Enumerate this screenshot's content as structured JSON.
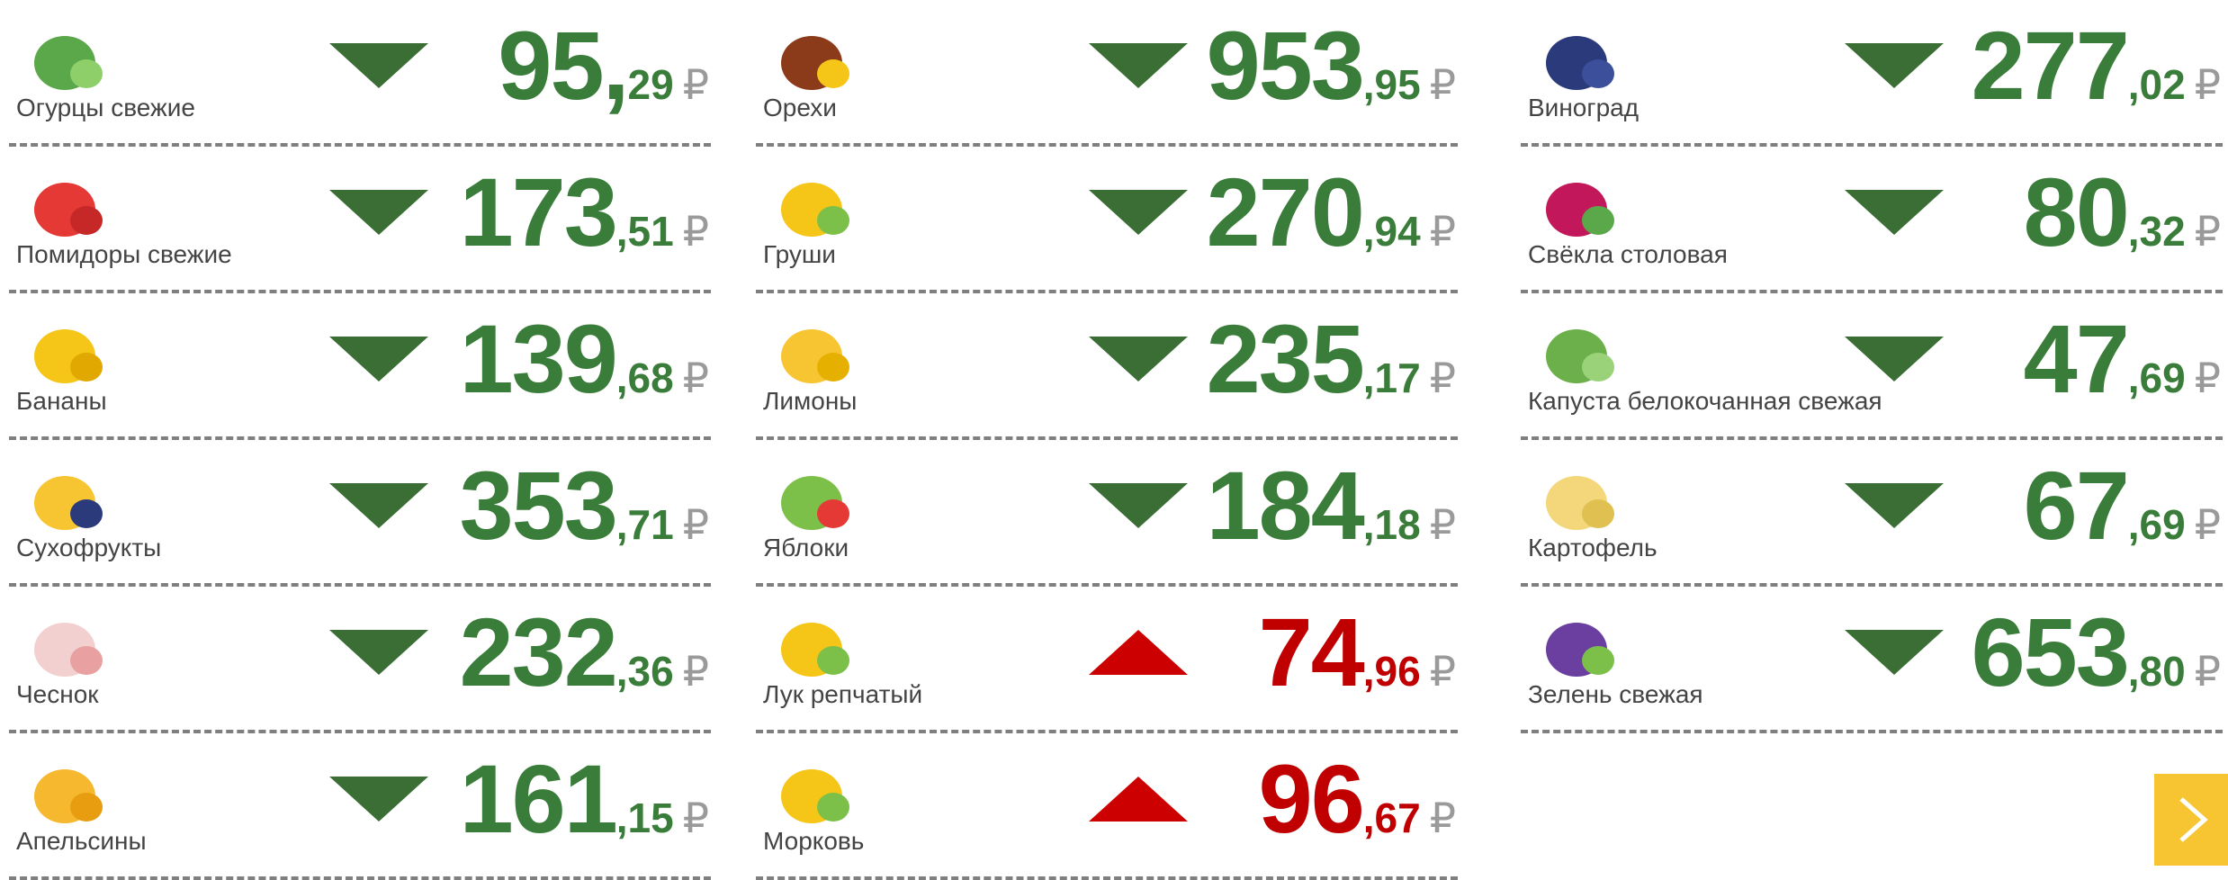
{
  "columns": [
    [
      {
        "name": "Огурцы свежие",
        "whole": "95,",
        "fraction": "29",
        "currency": "₽",
        "direction": "down"
      },
      {
        "name": "Помидоры свежие",
        "whole": "173",
        "fraction": ",51",
        "currency": "₽",
        "direction": "down"
      },
      {
        "name": "Бананы",
        "whole": "139",
        "fraction": ",68",
        "currency": "₽",
        "direction": "down"
      },
      {
        "name": "Сухофрукты",
        "whole": "353",
        "fraction": ",71",
        "currency": "₽",
        "direction": "down"
      },
      {
        "name": "Чеснок",
        "whole": "232",
        "fraction": ",36",
        "currency": "₽",
        "direction": "down"
      },
      {
        "name": "Апельсины",
        "whole": "161",
        "fraction": ",15",
        "currency": "₽",
        "direction": "down"
      }
    ],
    [
      {
        "name": "Орехи",
        "whole": "953",
        "fraction": ",95",
        "currency": "₽",
        "direction": "down"
      },
      {
        "name": "Груши",
        "whole": "270",
        "fraction": ",94",
        "currency": "₽",
        "direction": "down"
      },
      {
        "name": "Лимоны",
        "whole": "235",
        "fraction": ",17",
        "currency": "₽",
        "direction": "down"
      },
      {
        "name": "Яблоки",
        "whole": "184",
        "fraction": ",18",
        "currency": "₽",
        "direction": "down"
      },
      {
        "name": "Лук репчатый",
        "whole": "74",
        "fraction": ",96",
        "currency": "₽",
        "direction": "up"
      },
      {
        "name": "Морковь",
        "whole": "96",
        "fraction": ",67",
        "currency": "₽",
        "direction": "up"
      }
    ],
    [
      {
        "name": "Виноград",
        "whole": "277",
        "fraction": ",02",
        "currency": "₽",
        "direction": "down"
      },
      {
        "name": "Свёкла столовая",
        "whole": "80",
        "fraction": ",32",
        "currency": "₽",
        "direction": "down"
      },
      {
        "name": "Капуста белокочанная свежая",
        "whole": "47",
        "fraction": ",69",
        "currency": "₽",
        "direction": "down"
      },
      {
        "name": "Картофель",
        "whole": "67",
        "fraction": ",69",
        "currency": "₽",
        "direction": "down"
      },
      {
        "name": "Зелень свежая",
        "whole": "653",
        "fraction": ",80",
        "currency": "₽",
        "direction": "down"
      }
    ]
  ]
}
